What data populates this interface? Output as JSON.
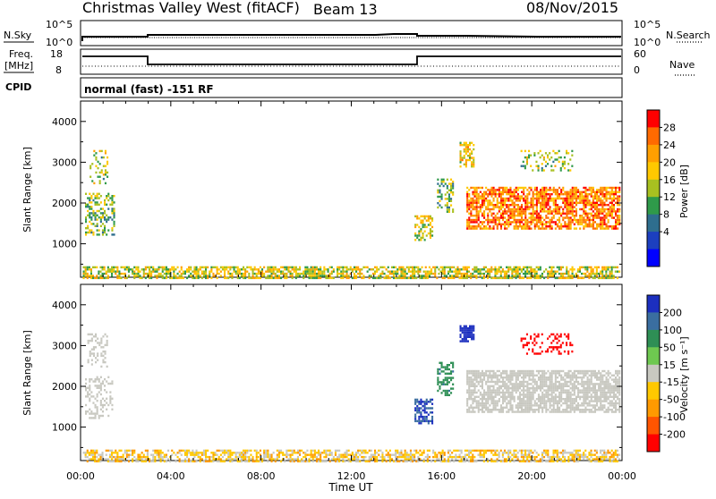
{
  "header": {
    "station": "Christmas Valley West (fitACF)",
    "beam": "Beam 13",
    "date": "08/Nov/2015"
  },
  "top_panels": {
    "nsky_label": "N.Sky",
    "nsearch_label": "N.Search",
    "noise_ticks": [
      "10^5",
      "10^0"
    ],
    "freq_label_line1": "Freq.",
    "freq_label_line2": "[MHz]",
    "freq_ticks": [
      "18",
      "8"
    ],
    "nave_label": "Nave",
    "nave_ticks": [
      "60",
      "0"
    ],
    "cpid_label": "CPID",
    "cpid_text": "normal (fast) -151 RF"
  },
  "chart_data": [
    {
      "type": "heatmap",
      "title": "",
      "ylabel": "Slant Range [km]",
      "xlabel": "",
      "x_ticks": [
        "00:00",
        "04:00",
        "08:00",
        "12:00",
        "16:00",
        "20:00",
        "00:00"
      ],
      "xlim_hours": [
        0,
        24
      ],
      "ylim": [
        180,
        4500
      ],
      "y_ticks": [
        1000,
        2000,
        3000,
        4000
      ],
      "y_tick_labels": [
        "1000",
        "2000",
        "3000",
        "4000"
      ],
      "colorbar": {
        "label": "Power [dB]",
        "ticks": [
          "28",
          "24",
          "20",
          "16",
          "12",
          "8",
          "4"
        ],
        "colors": [
          "#ff0000",
          "#ff6a00",
          "#ff9f00",
          "#ffc800",
          "#a8c020",
          "#2f9a4a",
          "#2e6e8e",
          "#1c3fbf",
          "#0000ff"
        ]
      },
      "regions": [
        {
          "x0": 0.1,
          "x1": 23.9,
          "y0": 180,
          "y1": 450,
          "value": 14,
          "density": 0.65
        },
        {
          "x0": 0.2,
          "x1": 1.5,
          "y0": 1250,
          "y1": 2250,
          "value": 10,
          "density": 0.35
        },
        {
          "x0": 0.4,
          "x1": 1.2,
          "y0": 2500,
          "y1": 3300,
          "value": 12,
          "density": 0.3
        },
        {
          "x0": 14.8,
          "x1": 15.6,
          "y0": 1100,
          "y1": 1700,
          "value": 14,
          "density": 0.55
        },
        {
          "x0": 15.8,
          "x1": 16.5,
          "y0": 1800,
          "y1": 2600,
          "value": 10,
          "density": 0.45
        },
        {
          "x0": 16.8,
          "x1": 17.4,
          "y0": 2900,
          "y1": 3500,
          "value": 16,
          "density": 0.6
        },
        {
          "x0": 17.1,
          "x1": 23.9,
          "y0": 1400,
          "y1": 2400,
          "value": 22,
          "density": 0.7
        },
        {
          "x0": 19.5,
          "x1": 21.8,
          "y0": 2800,
          "y1": 3300,
          "value": 12,
          "density": 0.25
        }
      ]
    },
    {
      "type": "heatmap",
      "title": "",
      "ylabel": "Slant Range [km]",
      "xlabel": "Time UT",
      "x_ticks": [
        "00:00",
        "04:00",
        "08:00",
        "12:00",
        "16:00",
        "20:00",
        "00:00"
      ],
      "xlim_hours": [
        0,
        24
      ],
      "ylim": [
        180,
        4500
      ],
      "y_ticks": [
        1000,
        2000,
        3000,
        4000
      ],
      "y_tick_labels": [
        "1000",
        "2000",
        "3000",
        "4000"
      ],
      "colorbar": {
        "label": "Velocity [m s⁻¹]",
        "ticks": [
          "200",
          "100",
          "50",
          "15",
          "-15",
          "-50",
          "-100",
          "-200"
        ],
        "colors": [
          "#1c2fbf",
          "#3a6ea0",
          "#2e8f55",
          "#6ec850",
          "#c8c8c0",
          "#ffc800",
          "#ff9a00",
          "#ff5500",
          "#ff0000"
        ]
      },
      "regions": [
        {
          "x0": 0.1,
          "x1": 23.9,
          "y0": 180,
          "y1": 450,
          "value": -20,
          "density": 0.6
        },
        {
          "x0": 0.2,
          "x1": 1.4,
          "y0": 1250,
          "y1": 2250,
          "value": 0,
          "density": 0.35
        },
        {
          "x0": 0.3,
          "x1": 1.2,
          "y0": 2500,
          "y1": 3300,
          "value": 0,
          "density": 0.3
        },
        {
          "x0": 14.8,
          "x1": 15.6,
          "y0": 1100,
          "y1": 1700,
          "value": 150,
          "density": 0.6
        },
        {
          "x0": 15.8,
          "x1": 16.5,
          "y0": 1800,
          "y1": 2600,
          "value": 60,
          "density": 0.45
        },
        {
          "x0": 16.8,
          "x1": 17.4,
          "y0": 3100,
          "y1": 3500,
          "value": 220,
          "density": 0.75
        },
        {
          "x0": 17.1,
          "x1": 23.9,
          "y0": 1400,
          "y1": 2400,
          "value": 0,
          "density": 0.75
        },
        {
          "x0": 19.5,
          "x1": 21.8,
          "y0": 2800,
          "y1": 3300,
          "value": -200,
          "density": 0.3
        }
      ]
    }
  ]
}
